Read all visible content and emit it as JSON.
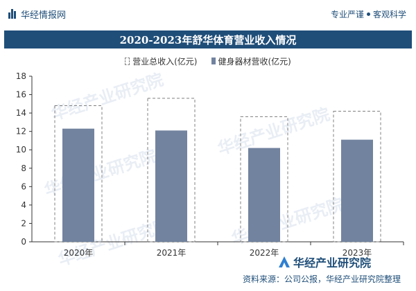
{
  "header": {
    "brand": "华经情报网",
    "tagline_1": "专业严谨",
    "tagline_2": "客观科学"
  },
  "watermark_text": "华经产业研究院",
  "footer": {
    "logo_text": "华经产业研究院",
    "source": "资料来源：公司公报，华经产业研究院整理"
  },
  "colors": {
    "primary": "#1f4e79",
    "bar_fill": "#72839f",
    "outline": "#7f7f7f"
  },
  "chart_data": {
    "type": "bar",
    "title": "2020-2023年舒华体育营业收入情况",
    "categories": [
      "2020年",
      "2021年",
      "2022年",
      "2023年"
    ],
    "series": [
      {
        "name": "营业总收入(亿元)",
        "values": [
          14.8,
          15.6,
          13.6,
          14.2
        ],
        "style": "dashed-outline"
      },
      {
        "name": "健身器材营收(亿元)",
        "values": [
          12.3,
          12.1,
          10.2,
          11.1
        ],
        "style": "solid"
      }
    ],
    "ylim": [
      0,
      18
    ],
    "yticks": [
      0,
      2,
      4,
      6,
      8,
      10,
      12,
      14,
      16,
      18
    ],
    "xlabel": "",
    "ylabel": "",
    "grid": false,
    "legend_position": "top-center"
  }
}
